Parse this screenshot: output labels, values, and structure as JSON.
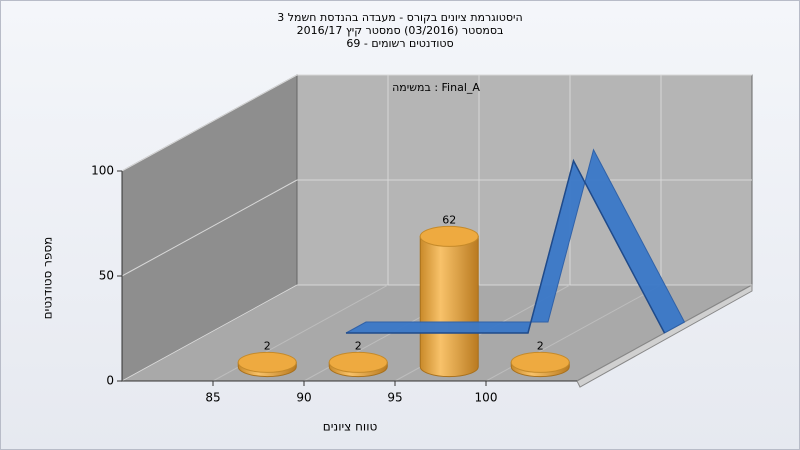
{
  "chart_data": {
    "type": "bar3d",
    "title": [
      "היסטוגרמת ציונים בקורס - מעבדה בהנדסת חשמל 3",
      "בסמסטר  (03/2016)  סמסטר קיץ 2016/17",
      "סטודנטים רשומים - 69"
    ],
    "annotation": "במשימה : Final_A",
    "x_label": "טווח ציונים",
    "y_label": "מספר סטודנטים",
    "xlim": [
      80,
      105
    ],
    "xticks": [
      85,
      90,
      95,
      100
    ],
    "ylim": [
      0,
      100
    ],
    "yticks": [
      0,
      50,
      100
    ],
    "grid": true,
    "series": [
      {
        "type": "bar",
        "color": "#e8a33a",
        "x": [
          87.5,
          92.5,
          97.5,
          102.5
        ],
        "values": [
          2,
          2,
          62,
          2
        ]
      },
      {
        "type": "line",
        "color": "#3a78c8",
        "x": [
          87.5,
          92.5,
          97.5,
          100,
          105
        ],
        "values": [
          0,
          0,
          0,
          82,
          0
        ]
      }
    ]
  }
}
